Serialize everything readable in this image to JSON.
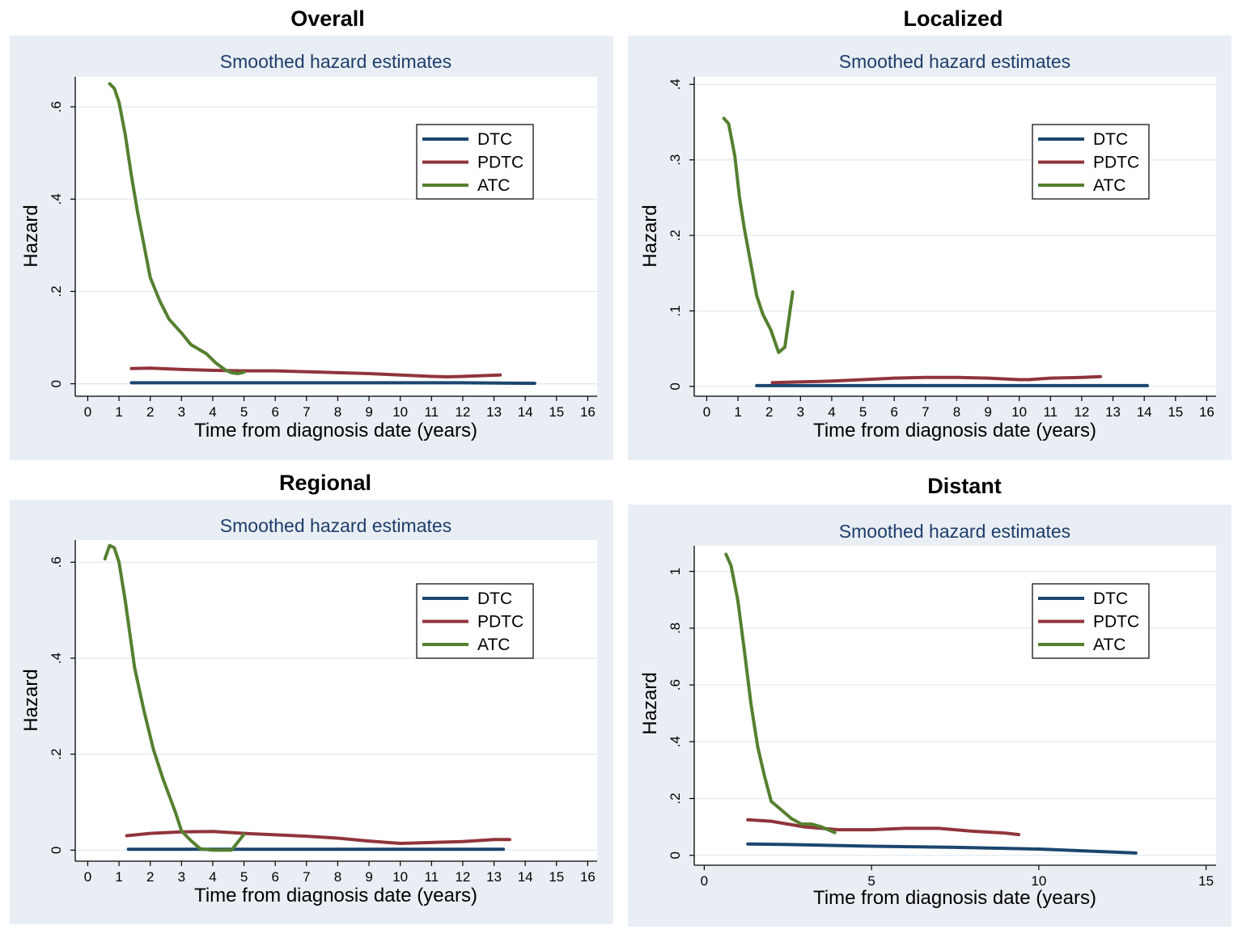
{
  "figure": {
    "colors": {
      "panel_bg": "#e8eef3",
      "plot_bg": "#ffffff",
      "grid": "#e0e8ef",
      "subtitle": "#1f3d6b",
      "DTC": "#1b466e",
      "PDTC": "#90353b",
      "ATC": "#55802f"
    }
  },
  "chart_data": [
    {
      "type": "line",
      "title": "Overall",
      "subtitle": "Smoothed hazard estimates",
      "xlabel": "Time from diagnosis date (years)",
      "ylabel": "Hazard",
      "xlim": [
        -0.4,
        16.3
      ],
      "ylim": [
        -0.027,
        0.665
      ],
      "xticks": [
        0,
        1,
        2,
        3,
        4,
        5,
        6,
        7,
        8,
        9,
        10,
        11,
        12,
        13,
        14,
        15,
        16
      ],
      "xtick_labels": [
        "0",
        "1",
        "2",
        "3",
        "4",
        "5",
        "6",
        "7",
        "8",
        "9",
        "10",
        "11",
        "12",
        "13",
        "14",
        "15",
        "16"
      ],
      "yticks": [
        0,
        0.2,
        0.4,
        0.6
      ],
      "ytick_labels": [
        "0",
        ".2",
        ".4",
        ".6"
      ],
      "legend": [
        "DTC",
        "PDTC",
        "ATC"
      ],
      "series": [
        {
          "name": "DTC",
          "x": [
            1.4,
            3,
            6,
            9,
            12,
            14.3
          ],
          "y": [
            0.002,
            0.002,
            0.002,
            0.002,
            0.002,
            0.001
          ]
        },
        {
          "name": "PDTC",
          "x": [
            1.4,
            2,
            3,
            4,
            5,
            6,
            7,
            8,
            9,
            10,
            11,
            11.5,
            12,
            13.2
          ],
          "y": [
            0.033,
            0.034,
            0.031,
            0.029,
            0.028,
            0.028,
            0.026,
            0.024,
            0.022,
            0.019,
            0.016,
            0.015,
            0.016,
            0.019
          ]
        },
        {
          "name": "ATC",
          "x": [
            0.7,
            0.85,
            1.0,
            1.2,
            1.4,
            1.6,
            1.8,
            2.0,
            2.3,
            2.6,
            3.0,
            3.3,
            3.8,
            4.1,
            4.4,
            4.6,
            4.8,
            5.0
          ],
          "y": [
            0.65,
            0.64,
            0.61,
            0.54,
            0.45,
            0.37,
            0.3,
            0.23,
            0.18,
            0.14,
            0.11,
            0.085,
            0.065,
            0.045,
            0.03,
            0.024,
            0.022,
            0.025
          ]
        }
      ]
    },
    {
      "type": "line",
      "title": "Localized",
      "subtitle": "Smoothed hazard estimates",
      "xlabel": "Time from diagnosis date (years)",
      "ylabel": "Hazard",
      "xlim": [
        -0.4,
        16.3
      ],
      "ylim": [
        -0.013,
        0.41
      ],
      "xticks": [
        0,
        1,
        2,
        3,
        4,
        5,
        6,
        7,
        8,
        9,
        10,
        11,
        12,
        13,
        14,
        15,
        16
      ],
      "xtick_labels": [
        "0",
        "1",
        "2",
        "3",
        "4",
        "5",
        "6",
        "7",
        "8",
        "9",
        "10",
        "11",
        "12",
        "13",
        "14",
        "15",
        "16"
      ],
      "yticks": [
        0,
        0.1,
        0.2,
        0.3,
        0.4
      ],
      "ytick_labels": [
        "0",
        ".1",
        ".2",
        ".3",
        ".4"
      ],
      "legend": [
        "DTC",
        "PDTC",
        "ATC"
      ],
      "series": [
        {
          "name": "DTC",
          "x": [
            1.6,
            4,
            8,
            12,
            14.1
          ],
          "y": [
            0.001,
            0.001,
            0.001,
            0.001,
            0.001
          ]
        },
        {
          "name": "PDTC",
          "x": [
            2.1,
            3,
            4,
            5,
            6,
            7,
            8,
            9,
            10,
            10.3,
            11,
            12,
            12.6
          ],
          "y": [
            0.005,
            0.006,
            0.007,
            0.009,
            0.011,
            0.012,
            0.012,
            0.011,
            0.009,
            0.009,
            0.011,
            0.012,
            0.013
          ]
        },
        {
          "name": "ATC",
          "x": [
            0.55,
            0.7,
            0.9,
            1.05,
            1.2,
            1.4,
            1.6,
            1.8,
            2.05,
            2.3,
            2.5,
            2.75
          ],
          "y": [
            0.355,
            0.348,
            0.305,
            0.25,
            0.21,
            0.165,
            0.12,
            0.095,
            0.075,
            0.045,
            0.052,
            0.125
          ]
        }
      ]
    },
    {
      "type": "line",
      "title": "Regional",
      "subtitle": "Smoothed hazard estimates",
      "xlabel": "Time from diagnosis date (years)",
      "ylabel": "Hazard",
      "xlim": [
        -0.4,
        16.3
      ],
      "ylim": [
        -0.023,
        0.646
      ],
      "xticks": [
        0,
        1,
        2,
        3,
        4,
        5,
        6,
        7,
        8,
        9,
        10,
        11,
        12,
        13,
        14,
        15,
        16
      ],
      "xtick_labels": [
        "0",
        "1",
        "2",
        "3",
        "4",
        "5",
        "6",
        "7",
        "8",
        "9",
        "10",
        "11",
        "12",
        "13",
        "14",
        "15",
        "16"
      ],
      "yticks": [
        0,
        0.2,
        0.4,
        0.6
      ],
      "ytick_labels": [
        "0",
        ".2",
        ".4",
        ".6"
      ],
      "legend": [
        "DTC",
        "PDTC",
        "ATC"
      ],
      "series": [
        {
          "name": "DTC",
          "x": [
            1.3,
            4,
            8,
            12,
            13.3
          ],
          "y": [
            0.002,
            0.002,
            0.002,
            0.002,
            0.002
          ]
        },
        {
          "name": "PDTC",
          "x": [
            1.25,
            2,
            3,
            4,
            5,
            6,
            7,
            8,
            9,
            10,
            11,
            12,
            13,
            13.5
          ],
          "y": [
            0.03,
            0.035,
            0.038,
            0.039,
            0.035,
            0.032,
            0.029,
            0.025,
            0.019,
            0.014,
            0.016,
            0.018,
            0.022,
            0.022
          ]
        },
        {
          "name": "ATC",
          "x": [
            0.55,
            0.7,
            0.85,
            1.0,
            1.2,
            1.5,
            1.8,
            2.1,
            2.4,
            2.8,
            3.0,
            3.3,
            3.6,
            4.0,
            4.6,
            5.0
          ],
          "y": [
            0.607,
            0.635,
            0.63,
            0.6,
            0.52,
            0.38,
            0.29,
            0.21,
            0.15,
            0.08,
            0.04,
            0.02,
            0.003,
            0.0,
            0.0,
            0.033
          ]
        }
      ]
    },
    {
      "type": "line",
      "title": "Distant",
      "subtitle": "Smoothed hazard estimates",
      "xlabel": "Time from diagnosis date (years)",
      "ylabel": "Hazard",
      "xlim": [
        -0.3,
        15.3
      ],
      "ylim": [
        -0.035,
        1.09
      ],
      "xticks": [
        0,
        5,
        10,
        15
      ],
      "xtick_labels": [
        "0",
        "5",
        "10",
        "15"
      ],
      "yticks": [
        0,
        0.2,
        0.4,
        0.6,
        0.8,
        1.0
      ],
      "ytick_labels": [
        "0",
        ".2",
        ".4",
        ".6",
        ".8",
        "1"
      ],
      "legend": [
        "DTC",
        "PDTC",
        "ATC"
      ],
      "series": [
        {
          "name": "DTC",
          "x": [
            1.3,
            2.5,
            5,
            7.5,
            10,
            12.9
          ],
          "y": [
            0.04,
            0.038,
            0.032,
            0.028,
            0.022,
            0.008
          ]
        },
        {
          "name": "PDTC",
          "x": [
            1.3,
            2,
            3,
            4,
            5,
            6,
            7,
            8,
            9,
            9.4
          ],
          "y": [
            0.125,
            0.12,
            0.1,
            0.09,
            0.09,
            0.095,
            0.095,
            0.085,
            0.078,
            0.073
          ]
        },
        {
          "name": "ATC",
          "x": [
            0.65,
            0.8,
            1.0,
            1.2,
            1.4,
            1.6,
            1.8,
            2.0,
            2.3,
            2.6,
            2.9,
            3.2,
            3.5,
            3.9
          ],
          "y": [
            1.06,
            1.02,
            0.9,
            0.72,
            0.53,
            0.38,
            0.28,
            0.19,
            0.16,
            0.13,
            0.11,
            0.11,
            0.1,
            0.08
          ]
        }
      ]
    }
  ]
}
